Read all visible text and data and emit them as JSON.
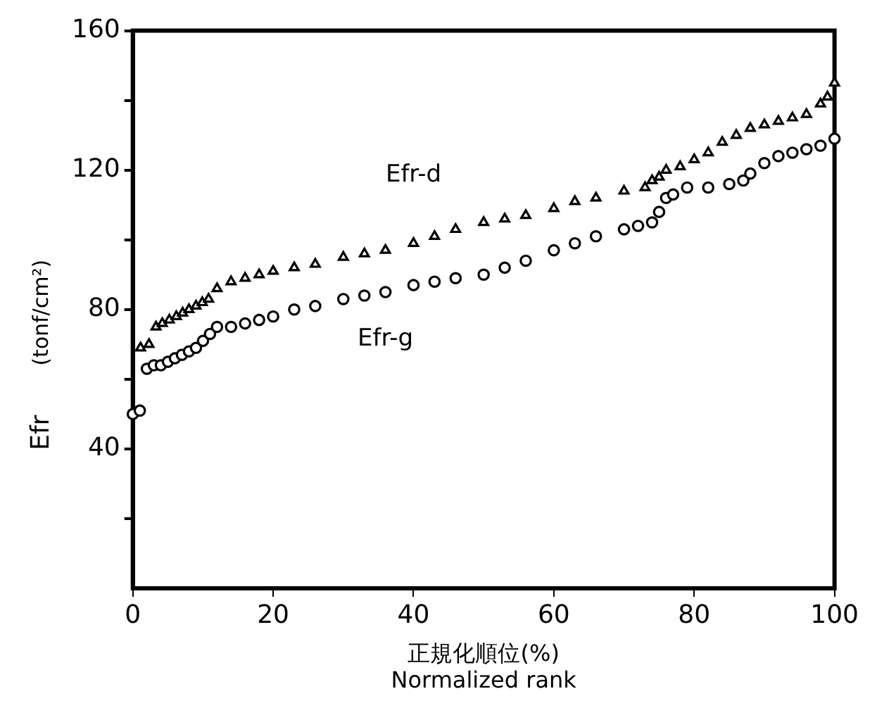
{
  "chart_data": {
    "type": "scatter",
    "xlabel": "正規化順位(%)\nNormalized rank",
    "ylabel": "Efr　(tonf/cm²)",
    "series": [
      {
        "name": "Efr-d",
        "color": "#000000",
        "marker": "triangle",
        "x": [
          1.1,
          2.3,
          3.3,
          4.2,
          5.2,
          6.2,
          7.1,
          8,
          9,
          9.9,
          10.8,
          12,
          14,
          16,
          18,
          20,
          23,
          26,
          30,
          33,
          36,
          40,
          43,
          46,
          50,
          53,
          56,
          60,
          63,
          66,
          70,
          73,
          74,
          75,
          76,
          78,
          80,
          82,
          84,
          86,
          88,
          90,
          92,
          94,
          96,
          98,
          99,
          100
        ],
        "values": [
          69,
          70,
          75,
          76,
          77,
          78,
          79,
          80,
          81,
          82,
          83,
          86,
          88,
          89,
          90,
          91,
          92,
          93,
          95,
          96,
          97,
          99,
          101,
          103,
          105,
          106,
          107,
          109,
          111,
          112,
          114,
          115,
          117,
          118,
          120,
          121,
          123,
          125,
          128,
          130,
          132,
          133,
          134,
          135,
          136,
          139,
          141,
          145
        ]
      },
      {
        "name": "Efr-g",
        "color": "#000000",
        "marker": "circle",
        "x": [
          0,
          1,
          2,
          3,
          4,
          5,
          6,
          7,
          8,
          9,
          10,
          11,
          12,
          14,
          16,
          18,
          20,
          23,
          26,
          30,
          33,
          36,
          40,
          43,
          46,
          50,
          53,
          56,
          60,
          63,
          66,
          70,
          72,
          74,
          75,
          76,
          77,
          79,
          82,
          85,
          87,
          88,
          90,
          92,
          94,
          96,
          98,
          100
        ],
        "values": [
          50,
          51,
          63,
          64,
          64,
          65,
          66,
          67,
          68,
          69,
          71,
          73,
          75,
          75,
          76,
          77,
          78,
          80,
          81,
          83,
          84,
          85,
          87,
          88,
          89,
          90,
          92,
          94,
          97,
          99,
          101,
          103,
          104,
          105,
          108,
          112,
          113,
          115,
          115,
          116,
          117,
          119,
          122,
          124,
          125,
          126,
          127,
          129
        ]
      }
    ],
    "xlim": [
      0,
      100
    ],
    "xticks": [
      0,
      20,
      40,
      60,
      80,
      100
    ],
    "ylim": [
      0,
      160
    ],
    "yticks": [
      {
        "value": 20,
        "label": null
      },
      40,
      {
        "value": 60,
        "label": null
      },
      80,
      {
        "value": 100,
        "label": null
      },
      120,
      {
        "value": 140,
        "label": null
      },
      160
    ],
    "grid": false,
    "legend": false
  }
}
